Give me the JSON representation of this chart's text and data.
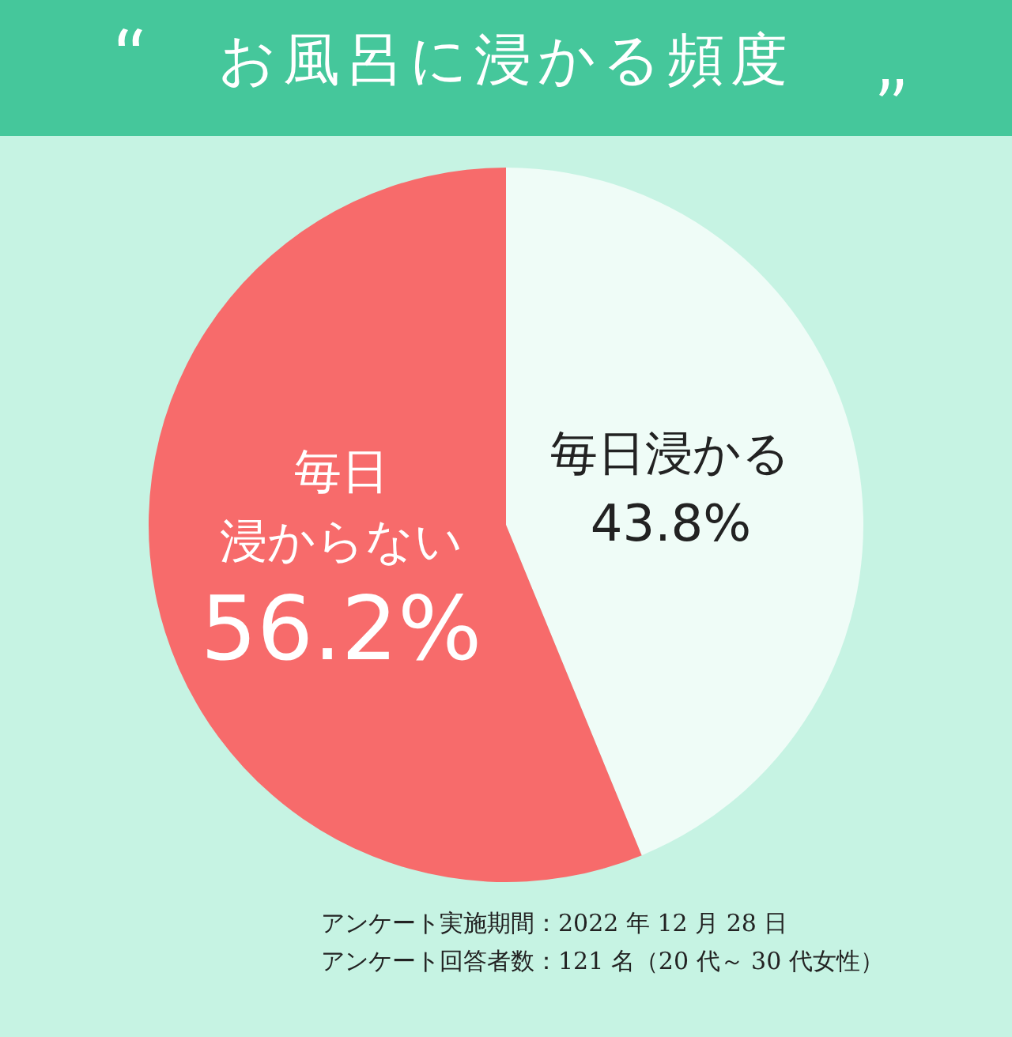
{
  "chart_data": {
    "type": "pie",
    "title": "お風呂に浸かる頻度",
    "categories": [
      "毎日浸かる",
      "毎日浸からない"
    ],
    "values": [
      43.8,
      56.2
    ],
    "colors": [
      "#effcf7",
      "#f76b6b"
    ],
    "value_labels": [
      "43.8%",
      "56.2%"
    ],
    "legend": false,
    "annotations": [
      "アンケート実施期間：2022 年 12 月 28 日",
      "アンケート回答者数：121 名（20 代～ 30 代女性）"
    ]
  }
}
